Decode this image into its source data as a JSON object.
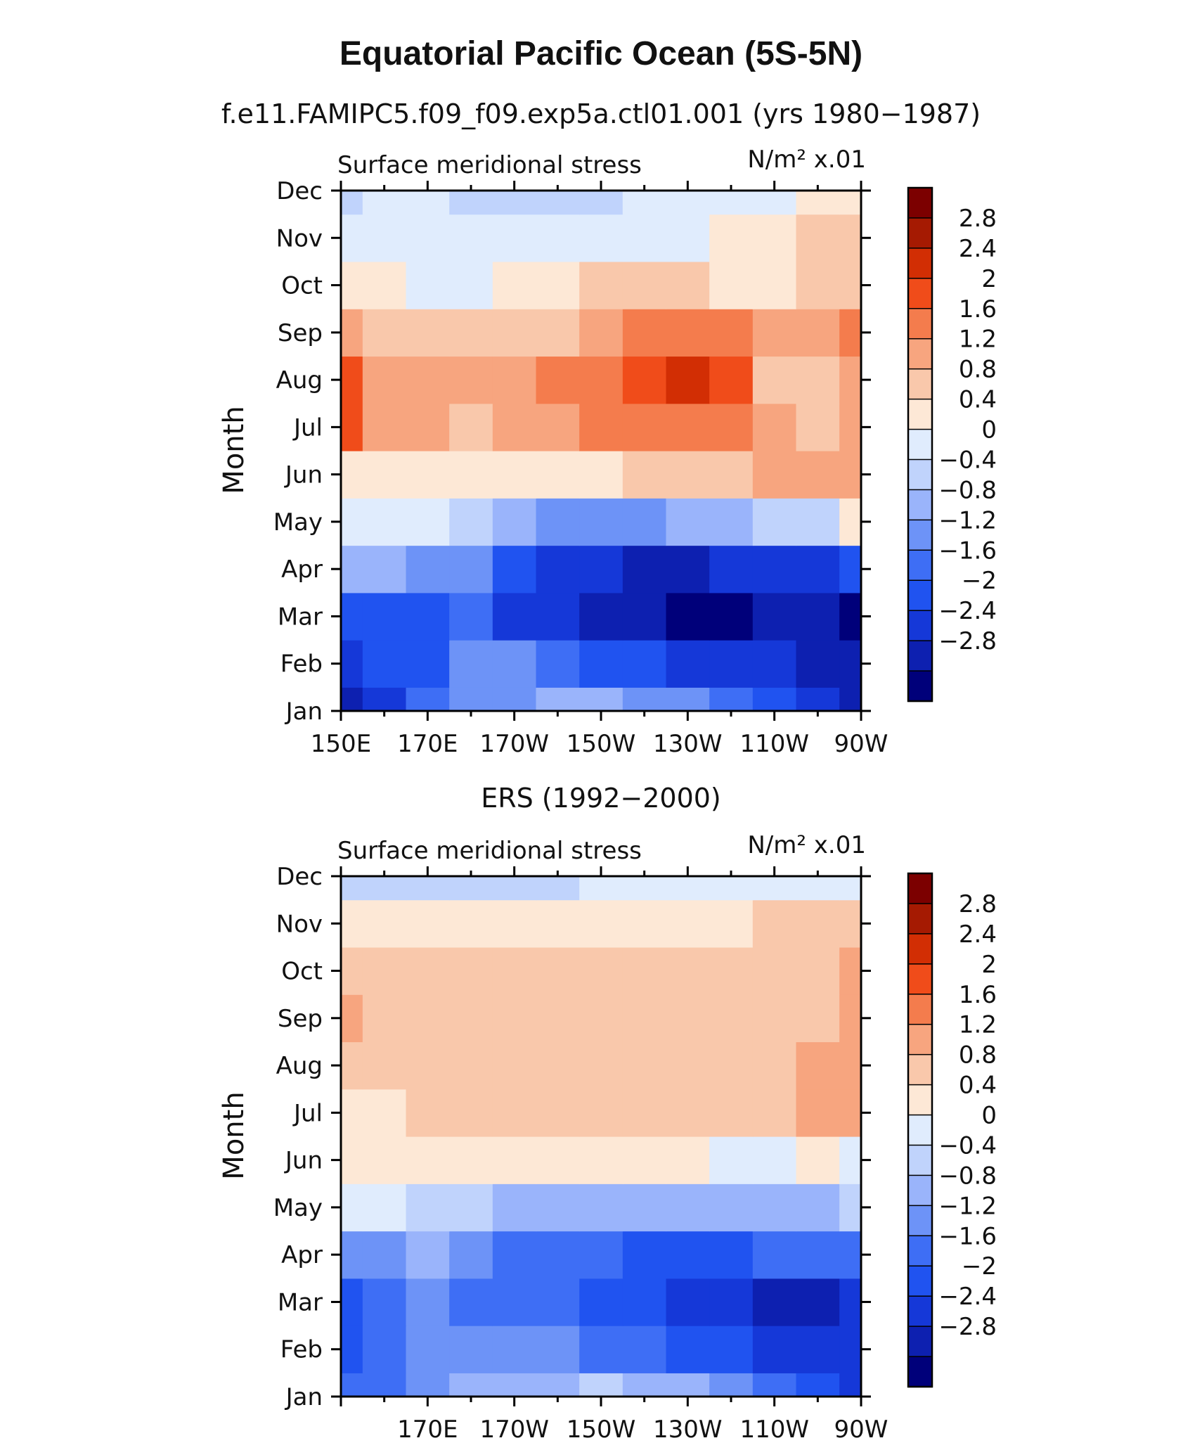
{
  "title": "Equatorial Pacific Ocean (5S-5N)",
  "colorbar_levels": [
    "2.8",
    "2.4",
    "2",
    "1.6",
    "1.2",
    "0.8",
    "0.4",
    "0",
    "−0.4",
    "−0.8",
    "−1.2",
    "−1.6",
    "−2",
    "−2.4",
    "−2.8"
  ],
  "chart_data": [
    {
      "type": "heatmap",
      "subtitle": "f.e11.FAMIPC5.f09_f09.exp5a.ctl01.001 (yrs 1980−1987)",
      "panel_left_label": "Surface meridional stress",
      "panel_right_label": "N/m² x.01",
      "ylabel": "Month",
      "xlabel": "",
      "x_tick_labels": [
        "150E",
        "170E",
        "170W",
        "150W",
        "130W",
        "110W",
        "90W"
      ],
      "y_tick_labels": [
        "Jan",
        "Feb",
        "Mar",
        "Apr",
        "May",
        "Jun",
        "Jul",
        "Aug",
        "Sep",
        "Oct",
        "Nov",
        "Dec"
      ],
      "x": [
        150,
        160,
        170,
        180,
        190,
        200,
        210,
        220,
        230,
        240,
        250,
        260,
        270
      ],
      "y": [
        "Jan",
        "Feb",
        "Mar",
        "Apr",
        "May",
        "Jun",
        "Jul",
        "Aug",
        "Sep",
        "Oct",
        "Nov",
        "Dec"
      ],
      "xlim": [
        150,
        270
      ],
      "values": [
        [
          -2.6,
          -2.3,
          -1.4,
          -1.0,
          -0.9,
          -0.8,
          -0.8,
          -0.9,
          -1.1,
          -1.3,
          -1.7,
          -2.1,
          -2.5
        ],
        [
          -2.2,
          -2.0,
          -1.7,
          -1.2,
          -1.1,
          -1.3,
          -1.7,
          -2.0,
          -2.2,
          -2.3,
          -2.4,
          -2.6,
          -2.8
        ],
        [
          -1.9,
          -1.8,
          -1.7,
          -1.6,
          -2.2,
          -2.4,
          -2.6,
          -2.8,
          -3.0,
          -2.9,
          -2.7,
          -2.8,
          -3.1
        ],
        [
          -0.6,
          -0.8,
          -1.0,
          -1.2,
          -1.8,
          -2.2,
          -2.4,
          -2.5,
          -2.6,
          -2.4,
          -2.3,
          -2.2,
          -2.0
        ],
        [
          0.3,
          0.2,
          0.0,
          -0.4,
          -0.8,
          -1.0,
          -1.1,
          -1.0,
          -0.8,
          -0.6,
          -0.4,
          -0.1,
          0.4
        ],
        [
          0.7,
          0.6,
          0.5,
          0.5,
          0.4,
          0.5,
          0.7,
          0.9,
          1.0,
          1.1,
          1.2,
          1.3,
          1.4
        ],
        [
          2.1,
          1.2,
          1.2,
          1.0,
          1.2,
          1.3,
          1.6,
          1.8,
          1.9,
          1.7,
          1.3,
          1.0,
          1.2
        ],
        [
          2.0,
          1.3,
          1.4,
          1.3,
          1.5,
          1.6,
          1.8,
          2.2,
          2.4,
          2.0,
          1.0,
          0.9,
          1.4
        ],
        [
          1.5,
          0.9,
          0.8,
          0.8,
          0.9,
          1.1,
          1.4,
          1.8,
          1.9,
          1.6,
          1.2,
          1.3,
          1.6
        ],
        [
          0.5,
          0.4,
          0.3,
          0.3,
          0.6,
          0.7,
          0.8,
          0.9,
          0.8,
          0.7,
          0.7,
          0.8,
          0.9
        ],
        [
          0.2,
          0.1,
          0.1,
          0.2,
          0.3,
          0.3,
          0.3,
          0.2,
          0.3,
          0.4,
          0.6,
          0.8,
          0.9
        ],
        [
          -0.2,
          0.1,
          0.0,
          -0.1,
          -0.2,
          -0.2,
          -0.1,
          0.0,
          0.1,
          0.2,
          0.3,
          0.4,
          0.4
        ]
      ],
      "colorbar": {
        "levels": [
          -2.8,
          -2.4,
          -2.0,
          -1.6,
          -1.2,
          -0.8,
          -0.4,
          0.0,
          0.4,
          0.8,
          1.2,
          1.6,
          2.0,
          2.4,
          2.8
        ],
        "colors": [
          "#00007a",
          "#0d20b0",
          "#1538d8",
          "#2053f0",
          "#3e6ef5",
          "#6d93f7",
          "#9ab4fb",
          "#c0d3fc",
          "#e0ecfd",
          "#fde8d6",
          "#f9c8ab",
          "#f7a57f",
          "#f47c4d",
          "#f04c1a",
          "#d22e04",
          "#a51a02",
          "#7c0000"
        ]
      }
    },
    {
      "type": "heatmap",
      "subtitle": "ERS (1992−2000)",
      "panel_left_label": "Surface meridional stress",
      "panel_right_label": "N/m² x.01",
      "ylabel": "Month",
      "xlabel": "",
      "x_tick_labels": [
        "",
        "170E",
        "170W",
        "150W",
        "130W",
        "110W",
        "90W"
      ],
      "y_tick_labels": [
        "Jan",
        "Feb",
        "Mar",
        "Apr",
        "May",
        "Jun",
        "Jul",
        "Aug",
        "Sep",
        "Oct",
        "Nov",
        "Dec"
      ],
      "x": [
        150,
        160,
        170,
        180,
        190,
        200,
        210,
        220,
        230,
        240,
        250,
        260,
        270
      ],
      "y": [
        "Jan",
        "Feb",
        "Mar",
        "Apr",
        "May",
        "Jun",
        "Jul",
        "Aug",
        "Sep",
        "Oct",
        "Nov",
        "Dec"
      ],
      "xlim": [
        150,
        270
      ],
      "values": [
        [
          -1.6,
          -1.3,
          -1.0,
          -0.8,
          -0.6,
          -0.5,
          -0.4,
          -0.6,
          -0.8,
          -1.1,
          -1.4,
          -1.8,
          -2.2
        ],
        [
          -2.0,
          -1.5,
          -1.1,
          -1.0,
          -1.1,
          -1.2,
          -1.4,
          -1.6,
          -1.8,
          -2.0,
          -2.1,
          -2.3,
          -2.4
        ],
        [
          -1.9,
          -1.6,
          -1.2,
          -1.3,
          -1.4,
          -1.5,
          -1.7,
          -1.9,
          -2.1,
          -2.3,
          -2.5,
          -2.6,
          -2.4
        ],
        [
          -1.0,
          -0.9,
          -0.8,
          -1.1,
          -1.3,
          -1.4,
          -1.6,
          -1.7,
          -1.8,
          -1.7,
          -1.6,
          -1.6,
          -1.4
        ],
        [
          0.3,
          0.1,
          -0.1,
          -0.3,
          -0.5,
          -0.6,
          -0.7,
          -0.7,
          -0.8,
          -0.7,
          -0.6,
          -0.5,
          -0.4
        ],
        [
          0.5,
          0.4,
          0.4,
          0.5,
          0.6,
          0.7,
          0.6,
          0.5,
          0.4,
          0.3,
          0.3,
          0.4,
          0.3
        ],
        [
          0.7,
          0.7,
          0.8,
          0.9,
          1.0,
          1.0,
          0.9,
          0.9,
          0.9,
          0.9,
          1.0,
          1.2,
          1.3
        ],
        [
          1.0,
          0.9,
          0.9,
          0.9,
          0.9,
          1.0,
          1.0,
          1.0,
          1.0,
          1.0,
          0.9,
          1.2,
          1.3
        ],
        [
          1.3,
          1.1,
          0.9,
          0.9,
          1.0,
          1.0,
          1.0,
          1.0,
          1.0,
          0.9,
          0.8,
          1.0,
          1.3
        ],
        [
          1.1,
          0.9,
          0.8,
          0.8,
          1.0,
          0.9,
          0.9,
          0.9,
          0.9,
          0.8,
          0.8,
          0.9,
          1.2
        ],
        [
          0.6,
          0.5,
          0.4,
          0.4,
          0.5,
          0.4,
          0.4,
          0.4,
          0.5,
          0.6,
          0.8,
          0.9,
          0.9
        ],
        [
          -0.2,
          -0.1,
          -0.3,
          -0.2,
          -0.1,
          -0.1,
          0.0,
          0.1,
          0.2,
          0.3,
          0.3,
          0.3,
          0.2
        ]
      ],
      "colorbar": {
        "levels": [
          -2.8,
          -2.4,
          -2.0,
          -1.6,
          -1.2,
          -0.8,
          -0.4,
          0.0,
          0.4,
          0.8,
          1.2,
          1.6,
          2.0,
          2.4,
          2.8
        ],
        "colors": [
          "#00007a",
          "#0d20b0",
          "#1538d8",
          "#2053f0",
          "#3e6ef5",
          "#6d93f7",
          "#9ab4fb",
          "#c0d3fc",
          "#e0ecfd",
          "#fde8d6",
          "#f9c8ab",
          "#f7a57f",
          "#f47c4d",
          "#f04c1a",
          "#d22e04",
          "#a51a02",
          "#7c0000"
        ]
      }
    }
  ]
}
